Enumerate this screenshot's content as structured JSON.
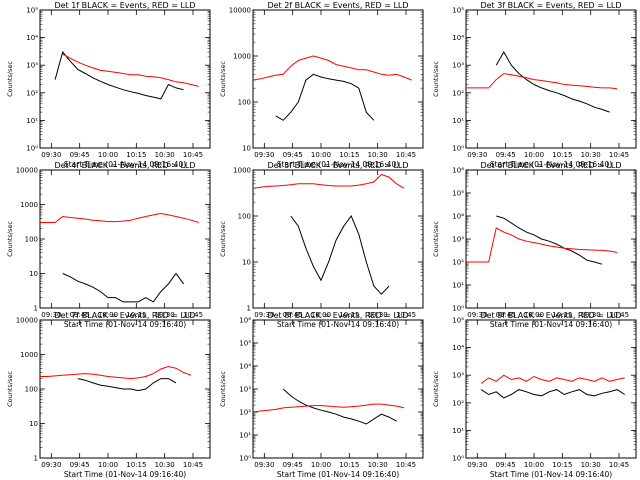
{
  "figure": {
    "background": "#ffffff",
    "event_color": "#000000",
    "lld_color": "#ff0000"
  },
  "chart_data": [
    {
      "type": "line",
      "title": "Det 1f BLACK = Events, RED = LLD",
      "xlabel": "Start Time (01-Nov-14 09:16:40)",
      "ylabel": "Counts/sec",
      "yscale": "log",
      "ylim": [
        1,
        100000
      ],
      "yticks": [
        1,
        10,
        100,
        1000,
        10000,
        100000
      ],
      "ytick_labels": [
        "10⁰",
        "10¹",
        "10²",
        "10³",
        "10⁴",
        "10⁵"
      ],
      "x": [
        "09:24",
        "09:28",
        "09:32",
        "09:36",
        "09:40",
        "09:44",
        "09:48",
        "09:52",
        "09:56",
        "10:00",
        "10:04",
        "10:08",
        "10:12",
        "10:16",
        "10:20",
        "10:24",
        "10:28",
        "10:32",
        "10:36",
        "10:40",
        "10:44",
        "10:48",
        "10:52"
      ],
      "series": [
        {
          "name": "BLACK = Events",
          "values": [
            null,
            null,
            300,
            3000,
            1400,
            700,
            500,
            350,
            260,
            200,
            160,
            130,
            110,
            95,
            80,
            70,
            60,
            200,
            150,
            130,
            null,
            null,
            null
          ]
        },
        {
          "name": "RED = LLD",
          "values": [
            null,
            null,
            null,
            2500,
            1800,
            1300,
            1000,
            800,
            650,
            600,
            550,
            500,
            450,
            450,
            400,
            380,
            350,
            300,
            250,
            230,
            200,
            170,
            null
          ]
        }
      ]
    },
    {
      "type": "line",
      "title": "Det 2f BLACK = Events, RED = LLD",
      "xlabel": "Start Time (01-Nov-14 09:16:40)",
      "ylabel": "Counts/sec",
      "yscale": "log",
      "ylim": [
        10,
        10000
      ],
      "yticks": [
        10,
        100,
        1000,
        10000
      ],
      "ytick_labels": [
        "10",
        "100",
        "1000",
        "10000"
      ],
      "x": [
        "09:24",
        "09:28",
        "09:32",
        "09:36",
        "09:40",
        "09:44",
        "09:48",
        "09:52",
        "09:56",
        "10:00",
        "10:04",
        "10:08",
        "10:12",
        "10:16",
        "10:20",
        "10:24",
        "10:28",
        "10:32",
        "10:36",
        "10:40",
        "10:44",
        "10:48",
        "10:52"
      ],
      "series": [
        {
          "name": "BLACK = Events",
          "values": [
            null,
            null,
            null,
            50,
            40,
            60,
            100,
            300,
            400,
            350,
            320,
            300,
            280,
            250,
            200,
            60,
            40,
            null,
            null,
            null,
            null,
            null,
            null
          ]
        },
        {
          "name": "RED = LLD",
          "values": [
            300,
            320,
            350,
            380,
            400,
            600,
            800,
            900,
            1000,
            900,
            800,
            650,
            600,
            550,
            500,
            500,
            450,
            400,
            380,
            400,
            350,
            300,
            null
          ]
        }
      ]
    },
    {
      "type": "line",
      "title": "Det 3f BLACK = Events, RED = LLD",
      "xlabel": "Start Time (01-Nov-14 09:16:40)",
      "ylabel": "Counts/sec",
      "yscale": "log",
      "ylim": [
        1,
        100000
      ],
      "yticks": [
        1,
        10,
        100,
        1000,
        10000,
        100000
      ],
      "ytick_labels": [
        "10⁰",
        "10¹",
        "10²",
        "10³",
        "10⁴",
        "10⁵"
      ],
      "x": [
        "09:24",
        "09:28",
        "09:32",
        "09:36",
        "09:40",
        "09:44",
        "09:48",
        "09:52",
        "09:56",
        "10:00",
        "10:04",
        "10:08",
        "10:12",
        "10:16",
        "10:20",
        "10:24",
        "10:28",
        "10:32",
        "10:36",
        "10:40",
        "10:44",
        "10:48",
        "10:52"
      ],
      "series": [
        {
          "name": "BLACK = Events",
          "values": [
            null,
            null,
            null,
            null,
            1000,
            3000,
            1000,
            500,
            300,
            200,
            150,
            120,
            100,
            80,
            60,
            50,
            40,
            30,
            25,
            20,
            null,
            null,
            null
          ]
        },
        {
          "name": "RED = LLD",
          "values": [
            150,
            150,
            150,
            150,
            300,
            500,
            450,
            400,
            350,
            300,
            280,
            250,
            230,
            200,
            190,
            180,
            170,
            160,
            150,
            150,
            140,
            null,
            null
          ]
        }
      ]
    },
    {
      "type": "line",
      "title": "Det 4f BLACK = Events, RED = LLD",
      "xlabel": "Start Time (01-Nov-14 09:16:40)",
      "ylabel": "Counts/sec",
      "yscale": "log",
      "ylim": [
        1,
        10000
      ],
      "yticks": [
        1,
        10,
        100,
        1000,
        10000
      ],
      "ytick_labels": [
        "1",
        "10",
        "100",
        "1000",
        "10000"
      ],
      "x": [
        "09:24",
        "09:28",
        "09:32",
        "09:36",
        "09:40",
        "09:44",
        "09:48",
        "09:52",
        "09:56",
        "10:00",
        "10:04",
        "10:08",
        "10:12",
        "10:16",
        "10:20",
        "10:24",
        "10:28",
        "10:32",
        "10:36",
        "10:40",
        "10:44",
        "10:48",
        "10:52"
      ],
      "series": [
        {
          "name": "BLACK = Events",
          "values": [
            null,
            null,
            null,
            10,
            8,
            6,
            5,
            4,
            3,
            2,
            2,
            1.5,
            1.5,
            1.5,
            2,
            1.5,
            3,
            5,
            10,
            5,
            null,
            null,
            null
          ]
        },
        {
          "name": "RED = LLD",
          "values": [
            300,
            300,
            300,
            450,
            420,
            400,
            380,
            350,
            340,
            320,
            320,
            330,
            350,
            400,
            450,
            500,
            550,
            500,
            450,
            400,
            350,
            300,
            null
          ]
        }
      ]
    },
    {
      "type": "line",
      "title": "Det 5f BLACK = Events, RED = LLD",
      "xlabel": "Start Time (01-Nov-14 09:16:40)",
      "ylabel": "Counts/sec",
      "yscale": "log",
      "ylim": [
        1,
        1000
      ],
      "yticks": [
        1,
        10,
        100,
        1000
      ],
      "ytick_labels": [
        "1",
        "10",
        "100",
        "1000"
      ],
      "x": [
        "09:24",
        "09:28",
        "09:32",
        "09:36",
        "09:40",
        "09:44",
        "09:48",
        "09:52",
        "09:56",
        "10:00",
        "10:04",
        "10:08",
        "10:12",
        "10:16",
        "10:20",
        "10:24",
        "10:28",
        "10:32",
        "10:36",
        "10:40",
        "10:44",
        "10:48",
        "10:52"
      ],
      "series": [
        {
          "name": "BLACK = Events",
          "values": [
            null,
            null,
            null,
            null,
            null,
            100,
            60,
            20,
            8,
            4,
            10,
            30,
            60,
            100,
            40,
            10,
            3,
            2,
            3,
            null,
            null,
            null,
            null
          ]
        },
        {
          "name": "RED = LLD",
          "values": [
            400,
            420,
            440,
            450,
            460,
            480,
            500,
            500,
            500,
            480,
            460,
            450,
            450,
            450,
            470,
            500,
            550,
            800,
            700,
            500,
            400,
            null,
            null
          ]
        }
      ]
    },
    {
      "type": "line",
      "title": "Det 6f BLACK = Events, RED = LLD",
      "xlabel": "Start Time (01-Nov-14 09:16:40)",
      "ylabel": "Counts/sec",
      "yscale": "log",
      "ylim": [
        1,
        1000000
      ],
      "yticks": [
        1,
        10,
        100,
        1000,
        10000,
        100000,
        1000000
      ],
      "ytick_labels": [
        "10⁰",
        "10¹",
        "10²",
        "10³",
        "10⁴",
        "10⁵",
        "10⁶"
      ],
      "x": [
        "09:24",
        "09:28",
        "09:32",
        "09:36",
        "09:40",
        "09:44",
        "09:48",
        "09:52",
        "09:56",
        "10:00",
        "10:04",
        "10:08",
        "10:12",
        "10:16",
        "10:20",
        "10:24",
        "10:28",
        "10:32",
        "10:36",
        "10:40",
        "10:44",
        "10:48",
        "10:52"
      ],
      "series": [
        {
          "name": "BLACK = Events",
          "values": [
            null,
            null,
            null,
            null,
            10000,
            8000,
            5000,
            3000,
            2000,
            1500,
            1000,
            800,
            600,
            400,
            300,
            200,
            120,
            100,
            80,
            null,
            null,
            null,
            null
          ]
        },
        {
          "name": "RED = LLD",
          "values": [
            100,
            100,
            100,
            100,
            3000,
            2000,
            1500,
            1000,
            800,
            700,
            600,
            500,
            450,
            400,
            380,
            350,
            340,
            330,
            320,
            300,
            260,
            null,
            null
          ]
        }
      ]
    },
    {
      "type": "line",
      "title": "Det 7f BLACK = Events, RED = LLD",
      "xlabel": "Start Time (01-Nov-14 09:16:40)",
      "ylabel": "Counts/sec",
      "yscale": "log",
      "ylim": [
        1,
        10000
      ],
      "yticks": [
        1,
        10,
        100,
        1000,
        10000
      ],
      "ytick_labels": [
        "1",
        "10",
        "100",
        "1000",
        "10000"
      ],
      "x": [
        "09:24",
        "09:28",
        "09:32",
        "09:36",
        "09:40",
        "09:44",
        "09:48",
        "09:52",
        "09:56",
        "10:00",
        "10:04",
        "10:08",
        "10:12",
        "10:16",
        "10:20",
        "10:24",
        "10:28",
        "10:32",
        "10:36",
        "10:40",
        "10:44",
        "10:48",
        "10:52"
      ],
      "series": [
        {
          "name": "BLACK = Events",
          "values": [
            null,
            null,
            null,
            null,
            null,
            200,
            180,
            150,
            130,
            120,
            110,
            100,
            100,
            90,
            100,
            150,
            200,
            200,
            150,
            null,
            null,
            null,
            null
          ]
        },
        {
          "name": "RED = LLD",
          "values": [
            230,
            230,
            240,
            250,
            260,
            270,
            280,
            270,
            250,
            230,
            220,
            210,
            200,
            210,
            230,
            280,
            380,
            450,
            400,
            300,
            250,
            null,
            null
          ]
        }
      ]
    },
    {
      "type": "line",
      "title": "Det 8f BLACK = Events, RED = LLD",
      "xlabel": "Start Time (01-Nov-14 09:16:40)",
      "ylabel": "Counts/sec",
      "yscale": "log",
      "ylim": [
        1,
        1000000
      ],
      "yticks": [
        1,
        10,
        100,
        1000,
        10000,
        100000,
        1000000
      ],
      "ytick_labels": [
        "10⁰",
        "10¹",
        "10²",
        "10³",
        "10⁴",
        "10⁵",
        "10⁶"
      ],
      "x": [
        "09:24",
        "09:28",
        "09:32",
        "09:36",
        "09:40",
        "09:44",
        "09:48",
        "09:52",
        "09:56",
        "10:00",
        "10:04",
        "10:08",
        "10:12",
        "10:16",
        "10:20",
        "10:24",
        "10:28",
        "10:32",
        "10:36",
        "10:40",
        "10:44",
        "10:48",
        "10:52"
      ],
      "series": [
        {
          "name": "BLACK = Events",
          "values": [
            null,
            null,
            null,
            null,
            1000,
            500,
            300,
            200,
            150,
            120,
            100,
            80,
            60,
            50,
            40,
            30,
            50,
            80,
            60,
            40,
            null,
            null,
            null
          ]
        },
        {
          "name": "RED = LLD",
          "values": [
            100,
            110,
            120,
            130,
            150,
            160,
            170,
            180,
            190,
            190,
            180,
            170,
            160,
            170,
            180,
            200,
            220,
            220,
            200,
            180,
            150,
            null,
            null
          ]
        }
      ]
    },
    {
      "type": "line",
      "title": "Det 9f BLACK = Events, RED = LLD",
      "xlabel": "Start Time (01-Nov-14 09:16:40)",
      "ylabel": "Counts/sec",
      "yscale": "log",
      "ylim": [
        1,
        100000
      ],
      "yticks": [
        1,
        10,
        100,
        1000,
        10000,
        100000
      ],
      "ytick_labels": [
        "10⁰",
        "10¹",
        "10²",
        "10³",
        "10⁴",
        "10⁵"
      ],
      "x": [
        "09:24",
        "09:28",
        "09:32",
        "09:36",
        "09:40",
        "09:44",
        "09:48",
        "09:52",
        "09:56",
        "10:00",
        "10:04",
        "10:08",
        "10:12",
        "10:16",
        "10:20",
        "10:24",
        "10:28",
        "10:32",
        "10:36",
        "10:40",
        "10:44",
        "10:48",
        "10:52"
      ],
      "series": [
        {
          "name": "BLACK = Events",
          "values": [
            null,
            null,
            300,
            200,
            250,
            150,
            200,
            300,
            250,
            200,
            180,
            250,
            300,
            200,
            250,
            300,
            200,
            180,
            220,
            250,
            300,
            200,
            null
          ]
        },
        {
          "name": "RED = LLD",
          "values": [
            null,
            null,
            500,
            800,
            600,
            1000,
            700,
            800,
            600,
            900,
            700,
            600,
            800,
            700,
            600,
            800,
            700,
            600,
            800,
            600,
            700,
            800,
            null
          ]
        }
      ]
    }
  ],
  "x_axis": {
    "ticks": [
      "09:30",
      "09:45",
      "10:00",
      "10:15",
      "10:30",
      "10:45"
    ]
  }
}
